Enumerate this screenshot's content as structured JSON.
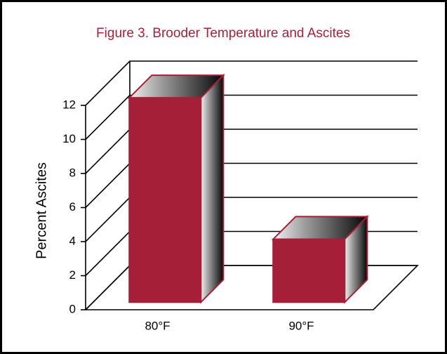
{
  "chart_data": {
    "type": "bar",
    "title": "Figure 3. Brooder Temperature and Ascites",
    "y_label": "Percent Ascites",
    "categories": [
      "80°F",
      "90°F"
    ],
    "values": [
      12,
      3.7
    ],
    "color": "#a51f38",
    "ylim": [
      0,
      12
    ],
    "yticks": [
      0,
      2,
      4,
      6,
      8,
      10,
      12
    ],
    "grid": true
  }
}
